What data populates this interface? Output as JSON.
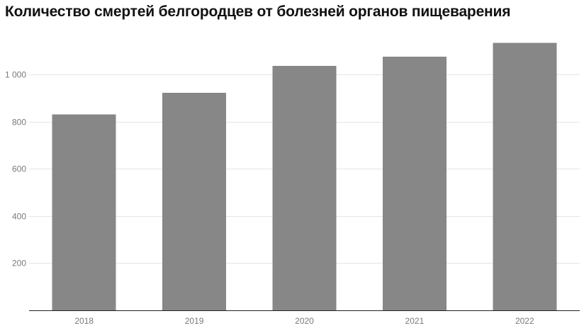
{
  "title": "Количество смертей белгородцев от болезней органов пищеварения",
  "chart_data": {
    "type": "bar",
    "title": "Количество смертей белгородцев от болезней органов пищеварения",
    "categories": [
      "2018",
      "2019",
      "2020",
      "2021",
      "2022"
    ],
    "values": [
      830,
      922,
      1036,
      1075,
      1133
    ],
    "ylim": [
      0,
      1200
    ],
    "yticks": [
      200,
      400,
      600,
      800,
      1000
    ],
    "ytick_labels": [
      "200",
      "400",
      "600",
      "800",
      "1 000"
    ],
    "xlabel": "",
    "ylabel": "",
    "grid": true,
    "legend": "none",
    "bar_color": "#878787"
  }
}
